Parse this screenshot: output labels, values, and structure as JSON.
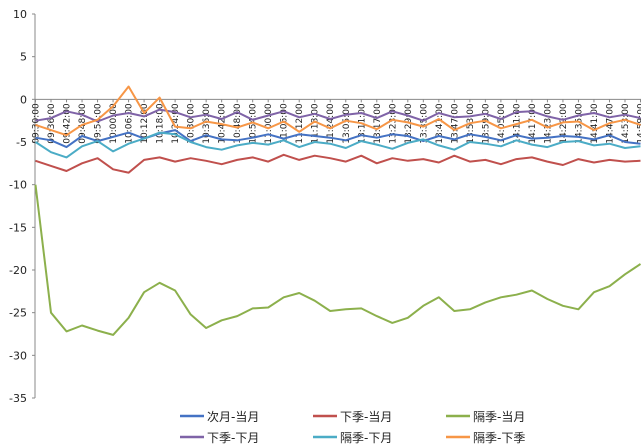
{
  "chart_data": {
    "type": "line",
    "title": "",
    "xlabel": "",
    "ylabel": "",
    "ylim": [
      -35,
      10
    ],
    "yticks": [
      10,
      5,
      0,
      -5,
      -10,
      -15,
      -20,
      -25,
      -30,
      -35
    ],
    "x": [
      "09:30:00",
      "09:36:00",
      "09:42:00",
      "09:48:00",
      "09:54:00",
      "10:00:00",
      "10:06:00",
      "10:12:00",
      "10:18:00",
      "10:24:00",
      "10:30:00",
      "10:36:00",
      "10:42:00",
      "10:48:00",
      "10:54:00",
      "11:00:00",
      "11:06:00",
      "11:12:00",
      "11:18:00",
      "11:24:00",
      "13:05:00",
      "13:11:00",
      "13:17:00",
      "13:23:00",
      "13:29:00",
      "13:35:00",
      "13:41:00",
      "13:47:00",
      "13:53:00",
      "13:59:00",
      "14:05:00",
      "14:11:00",
      "14:17:00",
      "14:23:00",
      "14:29:00",
      "14:35:00",
      "14:41:00",
      "14:47:00",
      "14:53:00",
      "14:59:00"
    ],
    "legend_position": "bottom",
    "series": [
      {
        "name": "次月-当月",
        "color": "#4472C4",
        "values": [
          -4.5,
          -4.8,
          -5.6,
          -4.3,
          -4.9,
          -4.4,
          -3.9,
          -4.6,
          -4.0,
          -3.6,
          -4.9,
          -4.2,
          -4.7,
          -4.8,
          -4.5,
          -4.1,
          -4.6,
          -4.1,
          -4.3,
          -4.5,
          -4.8,
          -4.2,
          -4.5,
          -4.1,
          -4.3,
          -4.9,
          -4.3,
          -4.7,
          -4.1,
          -4.4,
          -4.8,
          -4.2,
          -4.6,
          -4.5,
          -4.3,
          -4.4,
          -4.7,
          -4.2,
          -5.0,
          -5.2
        ]
      },
      {
        "name": "下季-当月",
        "color": "#C0504D",
        "values": [
          -7.2,
          -7.8,
          -8.4,
          -7.5,
          -6.9,
          -8.2,
          -8.6,
          -7.1,
          -6.8,
          -7.3,
          -6.9,
          -7.2,
          -7.6,
          -7.1,
          -6.8,
          -7.3,
          -6.5,
          -7.1,
          -6.6,
          -6.9,
          -7.3,
          -6.6,
          -7.5,
          -6.9,
          -7.2,
          -7.0,
          -7.4,
          -6.6,
          -7.3,
          -7.1,
          -7.6,
          -7.0,
          -6.8,
          -7.3,
          -7.7,
          -7.0,
          -7.4,
          -7.1,
          -7.3,
          -7.2
        ]
      },
      {
        "name": "隔季-当月",
        "color": "#8CB04C",
        "values": [
          -10.0,
          -25.0,
          -27.2,
          -26.5,
          -27.1,
          -27.6,
          -25.6,
          -22.6,
          -21.5,
          -22.4,
          -25.2,
          -26.8,
          -25.9,
          -25.4,
          -24.5,
          -24.4,
          -23.2,
          -22.7,
          -23.6,
          -24.8,
          -24.6,
          -24.5,
          -25.4,
          -26.2,
          -25.6,
          -24.2,
          -23.2,
          -24.8,
          -24.6,
          -23.8,
          -23.2,
          -22.9,
          -22.4,
          -23.4,
          -24.2,
          -24.6,
          -22.6,
          -21.9,
          -20.5,
          -19.3
        ]
      },
      {
        "name": "下季-下月",
        "color": "#7F63A7",
        "values": [
          -2.5,
          -2.2,
          -1.4,
          -1.8,
          -2.6,
          -1.9,
          -1.6,
          -2.0,
          -1.2,
          -1.5,
          -2.1,
          -1.8,
          -2.3,
          -1.5,
          -2.4,
          -1.9,
          -1.4,
          -2.1,
          -1.7,
          -2.3,
          -1.8,
          -1.6,
          -2.2,
          -1.4,
          -1.9,
          -2.5,
          -1.6,
          -2.1,
          -2.0,
          -1.7,
          -2.3,
          -1.5,
          -1.4,
          -2.0,
          -2.4,
          -1.9,
          -1.6,
          -2.1,
          -1.8,
          -2.2
        ]
      },
      {
        "name": "隔季-下月",
        "color": "#4BACC6",
        "values": [
          -5.0,
          -6.2,
          -6.8,
          -5.5,
          -4.9,
          -6.1,
          -5.2,
          -4.6,
          -3.9,
          -4.1,
          -5.0,
          -5.6,
          -5.9,
          -5.4,
          -5.1,
          -5.3,
          -4.8,
          -5.6,
          -5.0,
          -5.2,
          -5.7,
          -4.9,
          -5.3,
          -5.8,
          -5.1,
          -4.7,
          -5.4,
          -5.9,
          -5.0,
          -5.2,
          -5.5,
          -4.8,
          -5.3,
          -5.6,
          -5.0,
          -4.9,
          -5.4,
          -5.2,
          -5.7,
          -5.5
        ]
      },
      {
        "name": "隔季-下季",
        "color": "#F79646",
        "values": [
          -3.0,
          -3.6,
          -4.2,
          -3.0,
          -2.4,
          -0.8,
          1.5,
          -1.6,
          0.2,
          -3.2,
          -3.4,
          -2.6,
          -2.9,
          -3.3,
          -2.7,
          -3.4,
          -2.6,
          -3.8,
          -2.6,
          -3.4,
          -2.5,
          -2.8,
          -3.5,
          -2.4,
          -2.7,
          -3.2,
          -2.3,
          -3.6,
          -2.8,
          -2.5,
          -3.4,
          -2.9,
          -2.4,
          -3.3,
          -2.7,
          -2.6,
          -3.6,
          -2.8,
          -2.4,
          -3.0
        ]
      }
    ]
  }
}
